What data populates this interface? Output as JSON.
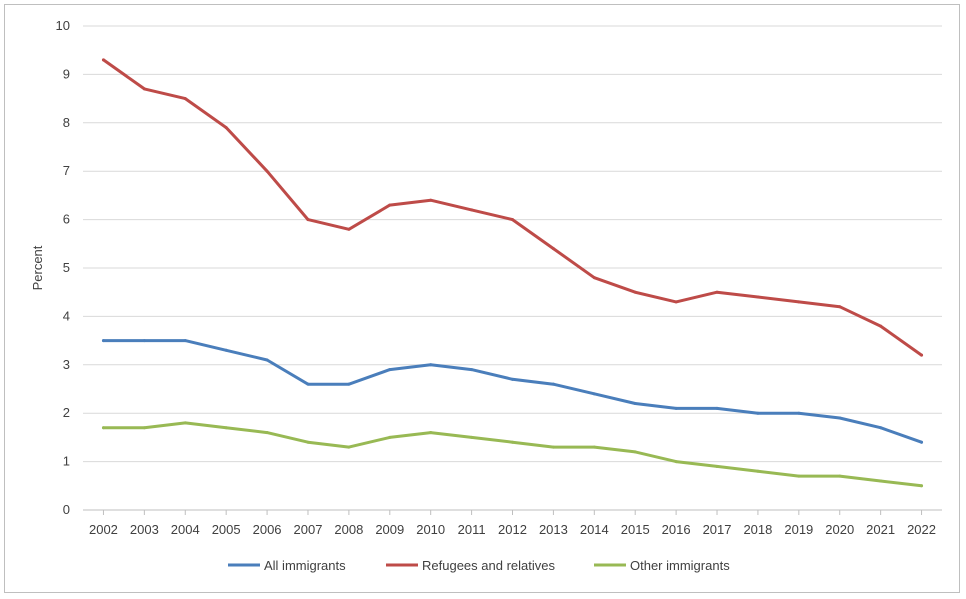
{
  "chart_data": {
    "type": "line",
    "title": "",
    "xlabel": "",
    "ylabel": "Percent",
    "ylim": [
      0,
      10
    ],
    "yticks": [
      0,
      1,
      2,
      3,
      4,
      5,
      6,
      7,
      8,
      9,
      10
    ],
    "grid": true,
    "legend": "bottom",
    "categories": [
      "2002",
      "2003",
      "2004",
      "2005",
      "2006",
      "2007",
      "2008",
      "2009",
      "2010",
      "2011",
      "2012",
      "2013",
      "2014",
      "2015",
      "2016",
      "2017",
      "2018",
      "2019",
      "2020",
      "2021",
      "2022"
    ],
    "series": [
      {
        "name": "All immigrants",
        "color": "#4a7ebb",
        "values": [
          3.5,
          3.5,
          3.5,
          3.3,
          3.1,
          2.6,
          2.6,
          2.9,
          3.0,
          2.9,
          2.7,
          2.6,
          2.4,
          2.2,
          2.1,
          2.1,
          2.0,
          2.0,
          1.9,
          1.7,
          1.4
        ]
      },
      {
        "name": "Refugees and relatives",
        "color": "#be4b48",
        "values": [
          9.3,
          8.7,
          8.5,
          7.9,
          7.0,
          6.0,
          5.8,
          6.3,
          6.4,
          6.2,
          6.0,
          5.4,
          4.8,
          4.5,
          4.3,
          4.5,
          4.4,
          4.3,
          4.2,
          3.8,
          3.2
        ]
      },
      {
        "name": "Other immigrants",
        "color": "#98b954",
        "values": [
          1.7,
          1.7,
          1.8,
          1.7,
          1.6,
          1.4,
          1.3,
          1.5,
          1.6,
          1.5,
          1.4,
          1.3,
          1.3,
          1.2,
          1.0,
          0.9,
          0.8,
          0.7,
          0.7,
          0.6,
          0.5
        ]
      }
    ]
  }
}
